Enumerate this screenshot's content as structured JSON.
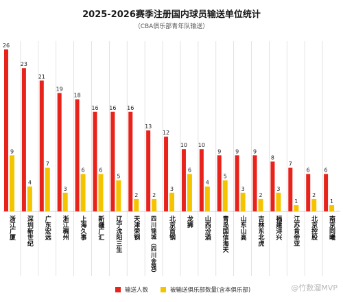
{
  "chart_data": {
    "type": "bar",
    "title": "2025-2026赛季注册国内球员输送单位统计",
    "subtitle": "（CBA俱乐部青年队输送）",
    "categories": [
      "浙江广厦",
      "深圳新世纪",
      "广东宏远",
      "浙江稠州",
      "上海久事",
      "新疆广汇",
      "辽宁沈阳三生",
      "天津荣钢",
      "四川锦城（四川金强）",
      "北京首钢",
      "龙狮",
      "山西汾酒",
      "青岛国信海天",
      "山东山高",
      "吉林东北虎",
      "福建浔兴",
      "江苏肯帝亚",
      "北京控股",
      "南京同曦"
    ],
    "series": [
      {
        "name": "输送人数",
        "values": [
          26,
          23,
          21,
          19,
          18,
          16,
          16,
          16,
          13,
          12,
          10,
          10,
          9,
          9,
          9,
          8,
          7,
          6,
          6
        ]
      },
      {
        "name": "被输送俱乐部数量(含本俱乐部)",
        "values": [
          9,
          4,
          7,
          3,
          6,
          6,
          5,
          2,
          2,
          3,
          6,
          4,
          5,
          3,
          2,
          3,
          1,
          2,
          1
        ]
      }
    ],
    "ylim": [
      0,
      26
    ],
    "grid": false,
    "legend_position": "bottom",
    "colors": {
      "series1": "#e8231c",
      "series2": "#f5c400",
      "separator": "#dcdcdc",
      "axis": "#bbbbbb"
    }
  },
  "watermark": "@竹数溜MVP"
}
